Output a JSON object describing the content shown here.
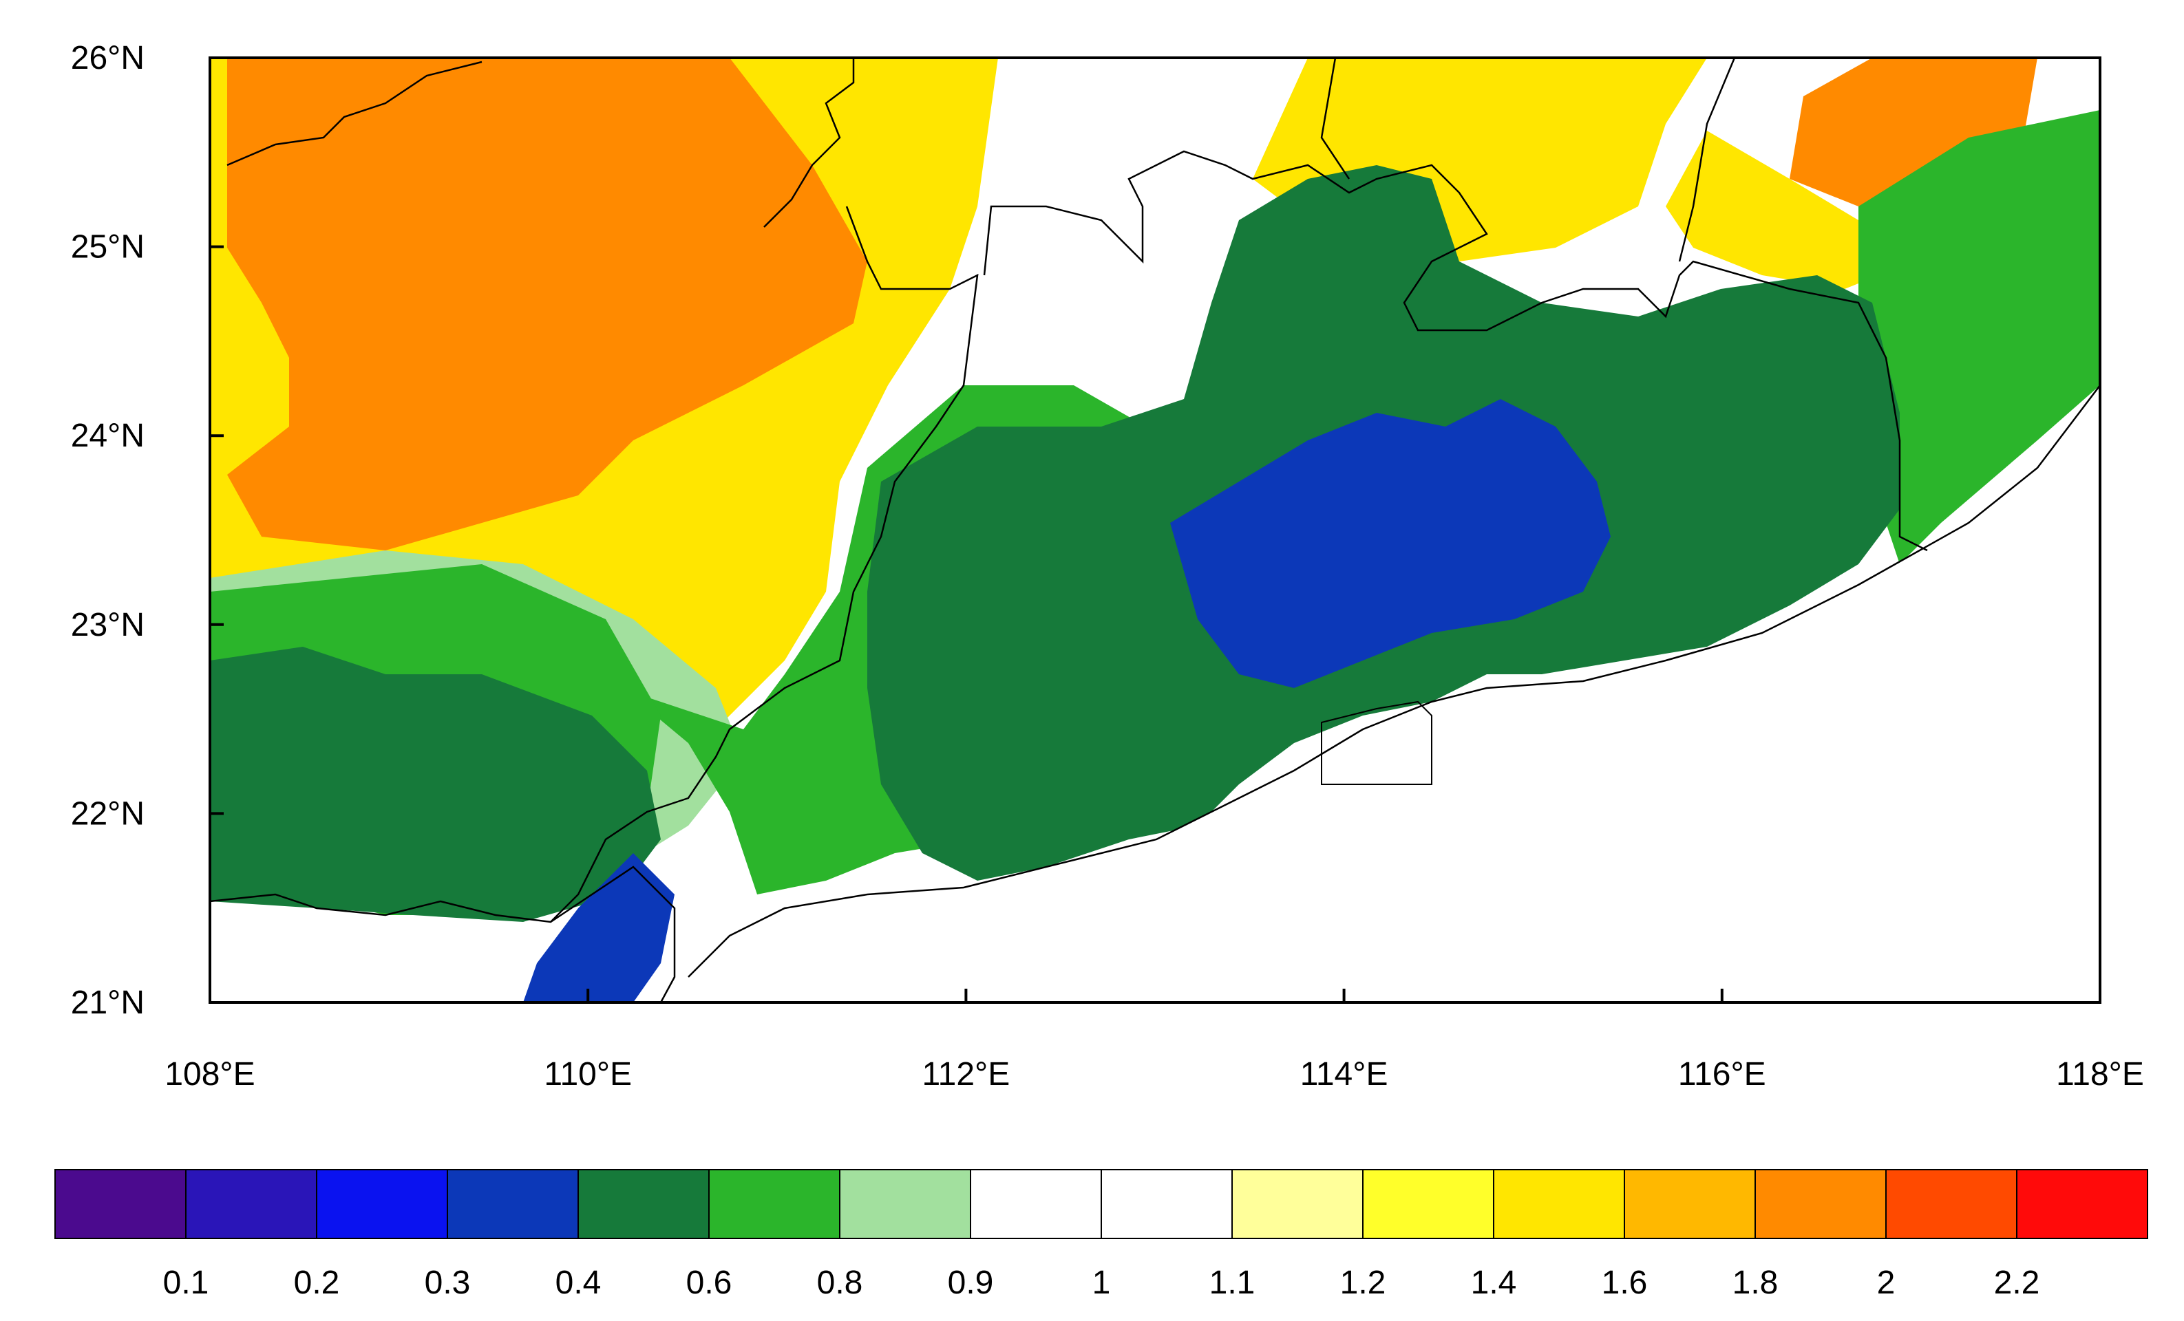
{
  "map": {
    "lat_range": [
      21,
      26
    ],
    "lon_range": [
      108,
      118
    ],
    "lat_ticks": [
      {
        "value": 26,
        "label": "26°N"
      },
      {
        "value": 25,
        "label": "25°N"
      },
      {
        "value": 24,
        "label": "24°N"
      },
      {
        "value": 23,
        "label": "23°N"
      },
      {
        "value": 22,
        "label": "22°N"
      },
      {
        "value": 21,
        "label": "21°N"
      }
    ],
    "lon_ticks": [
      {
        "value": 108,
        "label": "108°E"
      },
      {
        "value": 110,
        "label": "110°E"
      },
      {
        "value": 112,
        "label": "112°E"
      },
      {
        "value": 114,
        "label": "114°E"
      },
      {
        "value": 116,
        "label": "116°E"
      },
      {
        "value": 118,
        "label": "118°E"
      }
    ]
  },
  "colorbar": {
    "colors": [
      "#4B0A8E",
      "#2A15B8",
      "#0A12F0",
      "#0C38B8",
      "#167A3A",
      "#2BB52B",
      "#A2E09E",
      "#FFFFFF",
      "#FFFFFF",
      "#FFFF9A",
      "#FFFF2A",
      "#FFE600",
      "#FFB800",
      "#FF8A00",
      "#FF4A00",
      "#FF0A0A"
    ],
    "tick_labels": [
      "0.1",
      "0.2",
      "0.3",
      "0.4",
      "0.6",
      "0.8",
      "0.9",
      "1",
      "1.1",
      "1.2",
      "1.4",
      "1.6",
      "1.8",
      "2",
      "2.2"
    ]
  }
}
